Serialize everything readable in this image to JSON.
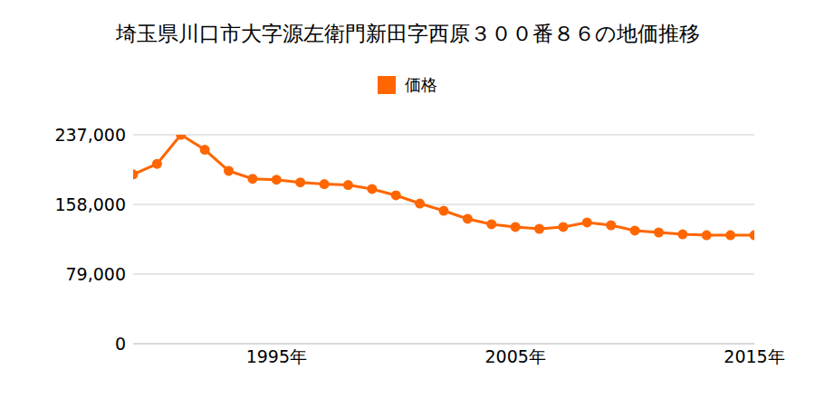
{
  "chart_data": {
    "type": "line",
    "title": "埼玉県川口市大字源左衛門新田字西原３００番８６の地価推移",
    "x": [
      1989,
      1990,
      1991,
      1992,
      1993,
      1994,
      1995,
      1996,
      1997,
      1998,
      1999,
      2000,
      2001,
      2002,
      2003,
      2004,
      2005,
      2006,
      2007,
      2008,
      2009,
      2010,
      2011,
      2012,
      2013,
      2014,
      2015
    ],
    "series": [
      {
        "name": "価格",
        "color": "#ff6600",
        "marker": "circle",
        "values": [
          192000,
          204000,
          237000,
          220000,
          196000,
          187000,
          186000,
          183000,
          181000,
          180000,
          175500,
          168300,
          159000,
          150800,
          141600,
          135500,
          132400,
          130300,
          132400,
          137500,
          134400,
          128300,
          126200,
          124100,
          123100,
          123100,
          123100
        ]
      }
    ],
    "xlim": [
      1989,
      2015
    ],
    "xticks": [
      {
        "value": 1995,
        "label": "1995年"
      },
      {
        "value": 2005,
        "label": "2005年"
      },
      {
        "value": 2015,
        "label": "2015年"
      }
    ],
    "ylim": [
      0,
      237000
    ],
    "yticks": [
      0,
      {
        "value": 79000,
        "label": "79,000"
      },
      {
        "value": 158000,
        "label": "158,000"
      },
      {
        "value": 237000,
        "label": "237,000"
      }
    ],
    "grid": true,
    "legend": "top"
  }
}
